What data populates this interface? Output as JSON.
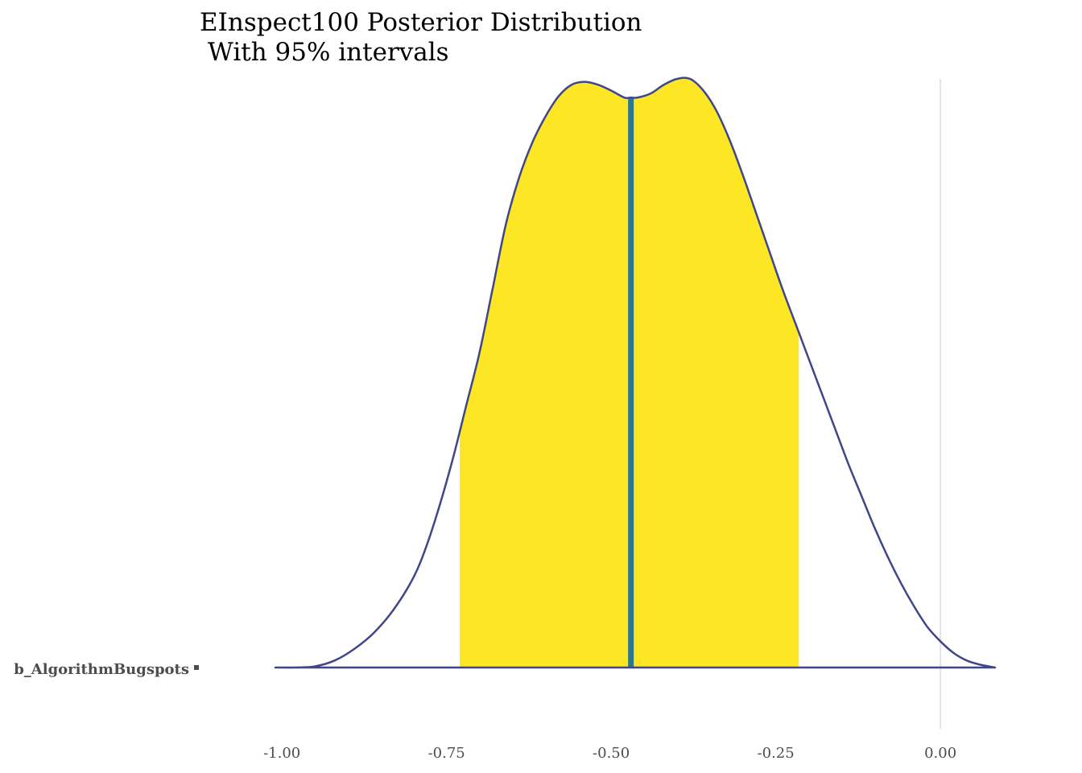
{
  "chart_data": {
    "type": "area",
    "title": "EInspect100 Posterior Distribution",
    "subtitle": "With 95% intervals",
    "parameter": "b_AlgorithmBugspots",
    "x_ticks": [
      -1.0,
      -0.75,
      -0.5,
      -0.25,
      0.0
    ],
    "x_tick_labels": [
      "-1.00",
      "-0.75",
      "-0.50",
      "-0.25",
      "0.00"
    ],
    "xlim": [
      -1.01,
      0.083
    ],
    "reference_line": 0.0,
    "interval_95": [
      -0.73,
      -0.215
    ],
    "point_estimate": -0.47,
    "density": {
      "x": [
        -1.01,
        -0.98,
        -0.95,
        -0.92,
        -0.89,
        -0.86,
        -0.83,
        -0.8,
        -0.78,
        -0.76,
        -0.74,
        -0.72,
        -0.7,
        -0.68,
        -0.66,
        -0.64,
        -0.62,
        -0.6,
        -0.58,
        -0.56,
        -0.54,
        -0.52,
        -0.5,
        -0.48,
        -0.47,
        -0.46,
        -0.44,
        -0.42,
        -0.4,
        -0.38,
        -0.36,
        -0.34,
        -0.32,
        -0.3,
        -0.28,
        -0.26,
        -0.24,
        -0.22,
        -0.2,
        -0.18,
        -0.16,
        -0.14,
        -0.12,
        -0.1,
        -0.08,
        -0.06,
        -0.04,
        -0.02,
        0.0,
        0.02,
        0.04,
        0.06,
        0.083
      ],
      "y": [
        0.0,
        0.0,
        0.002,
        0.012,
        0.032,
        0.06,
        0.1,
        0.155,
        0.21,
        0.28,
        0.36,
        0.45,
        0.54,
        0.65,
        0.76,
        0.84,
        0.9,
        0.945,
        0.98,
        1.0,
        1.005,
        1.0,
        0.99,
        0.978,
        0.978,
        0.978,
        0.985,
        1.0,
        1.01,
        1.01,
        0.99,
        0.955,
        0.905,
        0.845,
        0.78,
        0.715,
        0.65,
        0.59,
        0.53,
        0.47,
        0.41,
        0.35,
        0.295,
        0.24,
        0.19,
        0.145,
        0.105,
        0.07,
        0.045,
        0.025,
        0.012,
        0.005,
        0.0
      ]
    },
    "colors": {
      "fill": "#fde725",
      "outline": "#3f4788",
      "point_line": "#2a788e",
      "reference": "#e3e3e3",
      "tick_text": "#4d4d4d"
    }
  }
}
